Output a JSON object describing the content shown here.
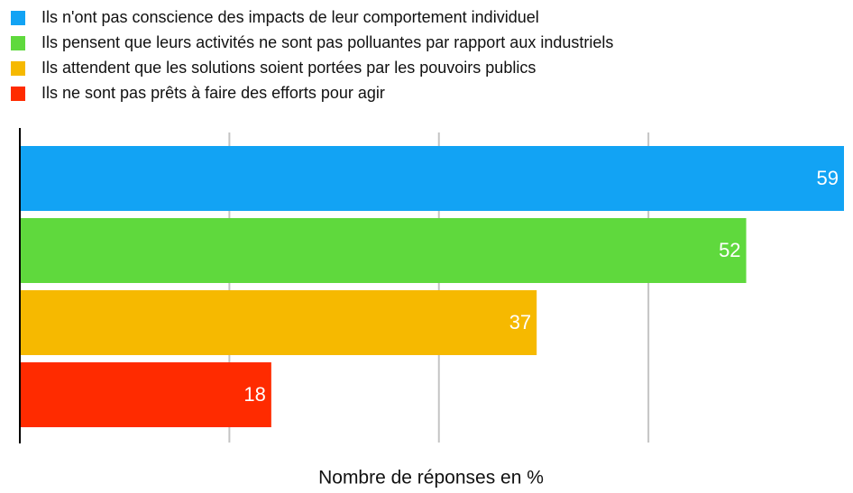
{
  "chart_data": {
    "type": "bar",
    "orientation": "horizontal",
    "x_label": "Nombre de réponses en %",
    "series": [
      {
        "name": "Ils n'ont pas conscience des impacts de leur comportement individuel",
        "color": "#12a3f4",
        "values": [
          59
        ]
      },
      {
        "name": "Ils pensent que leurs activités ne sont pas polluantes par rapport aux industriels",
        "color": "#5fd93d",
        "values": [
          52
        ]
      },
      {
        "name": "Ils attendent que les solutions soient portées par les pouvoirs publics",
        "color": "#f6b900",
        "values": [
          37
        ]
      },
      {
        "name": "Ils ne sont pas prêts à faire des efforts pour agir",
        "color": "#ff2b00",
        "values": [
          18
        ]
      }
    ],
    "xlim": [
      0,
      59
    ],
    "xticks": [
      0,
      15,
      30,
      45
    ],
    "grid": true,
    "legend": "top-left"
  }
}
